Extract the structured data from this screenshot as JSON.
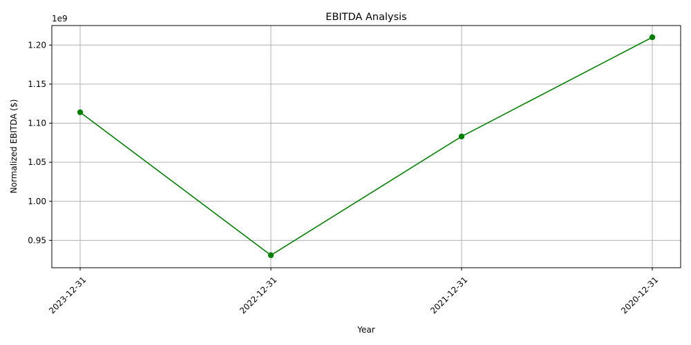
{
  "chart_data": {
    "type": "line",
    "title": "EBITDA Analysis",
    "xlabel": "Year",
    "ylabel": "Normalized EBITDA ($)",
    "y_offset_label": "1e9",
    "categories": [
      "2023-12-31",
      "2022-12-31",
      "2021-12-31",
      "2020-12-31"
    ],
    "series": [
      {
        "values": [
          1.114,
          0.931,
          1.083,
          1.21
        ],
        "color": "#008000",
        "marker": "circle"
      }
    ],
    "ylim": [
      0.915,
      1.225
    ],
    "yticks": [
      0.95,
      1.0,
      1.05,
      1.1,
      1.15,
      1.2
    ],
    "ytick_labels": [
      "0.95",
      "1.00",
      "1.05",
      "1.10",
      "1.15",
      "1.20"
    ],
    "grid": true,
    "x_tick_rotation": 45
  }
}
